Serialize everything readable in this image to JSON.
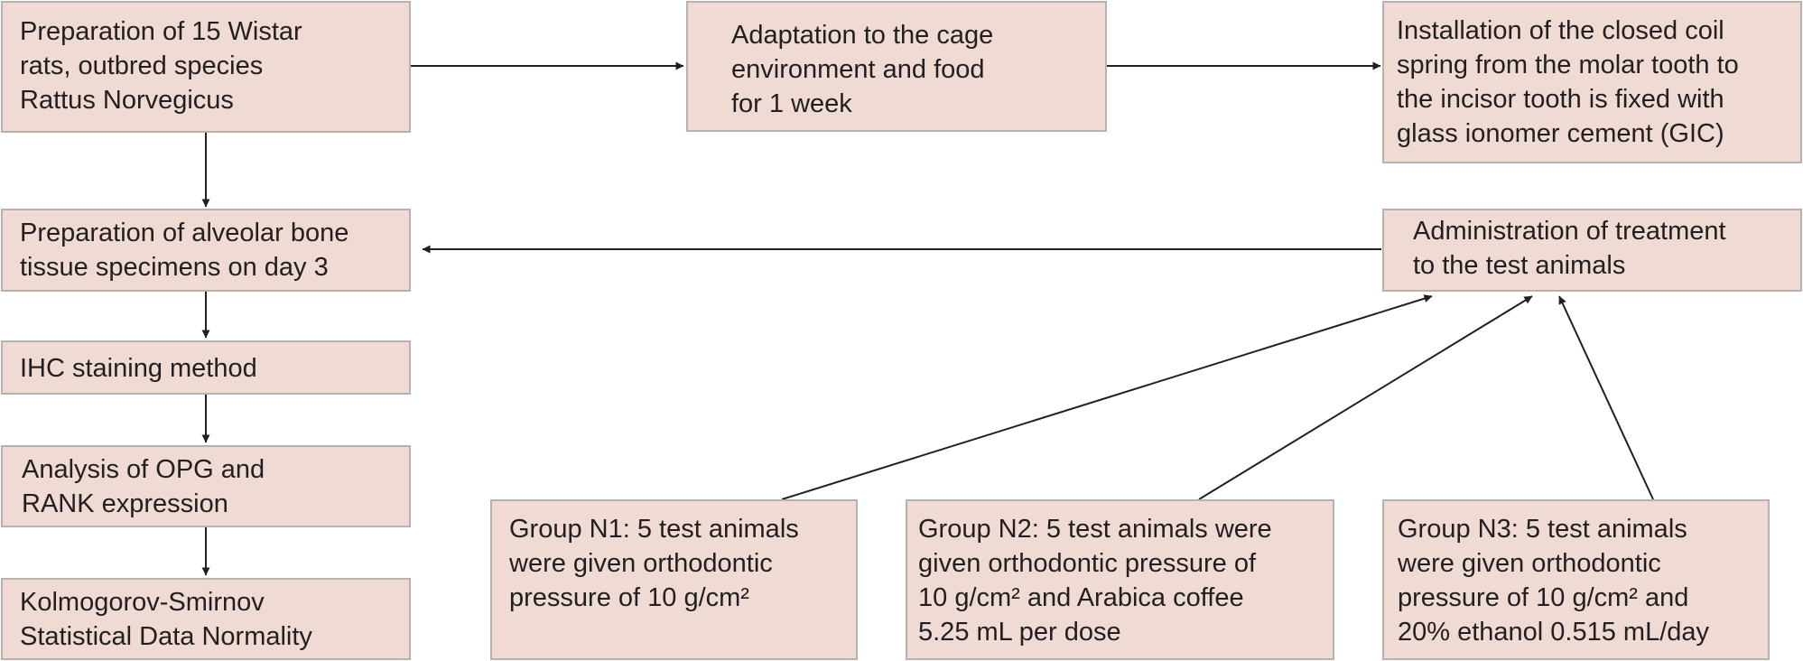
{
  "nodes": {
    "prep_rats": "Preparation of 15 Wistar\nrats, outbred species\nRattus Norvegicus",
    "adaptation": "Adaptation to the cage\nenvironment and food\nfor 1 week",
    "installation": "Installation of the closed coil\nspring from the molar tooth to\nthe incisor tooth is fixed with\nglass ionomer cement (GIC)",
    "prep_specimens": "Preparation of alveolar bone\ntissue specimens on day 3",
    "administration": "Administration of treatment\nto the test animals",
    "ihc": "IHC staining method",
    "analysis": "Analysis of OPG and\nRANK expression",
    "ks": "Kolmogorov-Smirnov\nStatistical Data Normality",
    "group_n1": "Group N1: 5 test animals\nwere given orthodontic\npressure of 10 g/cm²",
    "group_n2": "Group N2: 5 test animals were\ngiven orthodontic pressure of\n10 g/cm² and Arabica coffee\n5.25 mL per dose",
    "group_n3": "Group N3: 5 test animals\nwere given orthodontic\npressure of 10 g/cm² and\n20% ethanol 0.515 mL/day"
  },
  "colors": {
    "box_fill": "#efdad4",
    "box_border": "#b9b1ae",
    "arrow": "#231f20",
    "text": "#231f20"
  }
}
